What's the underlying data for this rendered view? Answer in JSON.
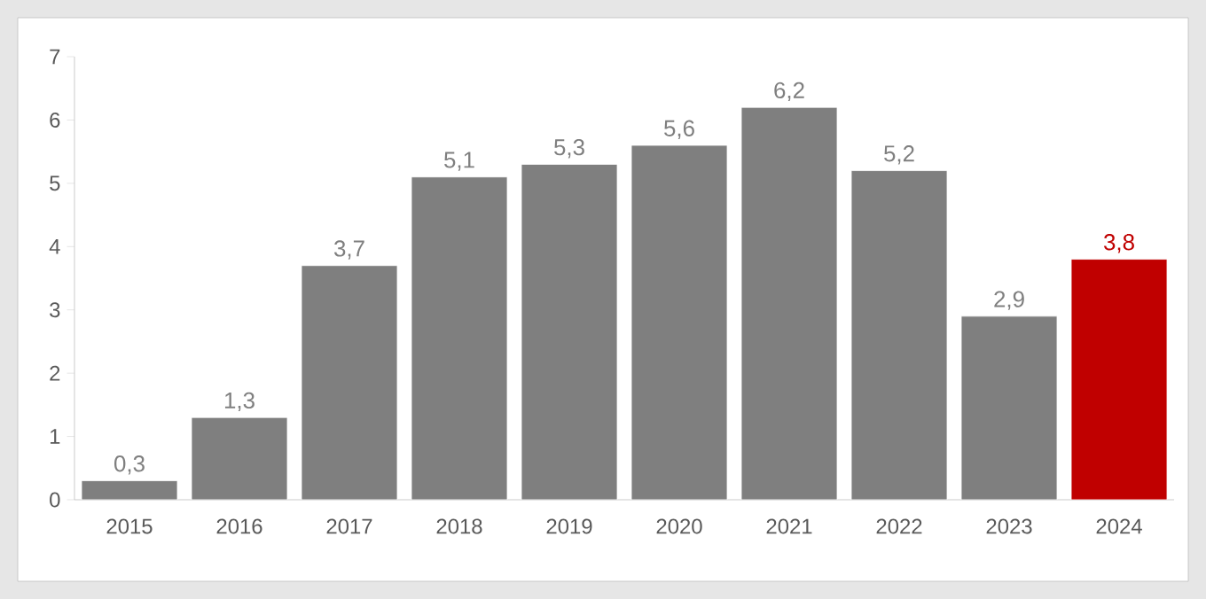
{
  "chart_data": {
    "type": "bar",
    "categories": [
      "2015",
      "2016",
      "2017",
      "2018",
      "2019",
      "2020",
      "2021",
      "2022",
      "2023",
      "2024"
    ],
    "values": [
      0.3,
      1.3,
      3.7,
      5.1,
      5.3,
      5.6,
      6.2,
      5.2,
      2.9,
      3.8
    ],
    "colors": [
      "#7f7f7f",
      "#7f7f7f",
      "#7f7f7f",
      "#7f7f7f",
      "#7f7f7f",
      "#7f7f7f",
      "#7f7f7f",
      "#7f7f7f",
      "#7f7f7f",
      "#c00000"
    ],
    "value_labels": [
      "0,3",
      "1,3",
      "3,7",
      "5,1",
      "5,3",
      "5,6",
      "6,2",
      "5,2",
      "2,9",
      "3,8"
    ],
    "ylim": [
      0,
      7
    ],
    "yticks": [
      0,
      1,
      2,
      3,
      4,
      5,
      6,
      7
    ],
    "grid": false
  }
}
